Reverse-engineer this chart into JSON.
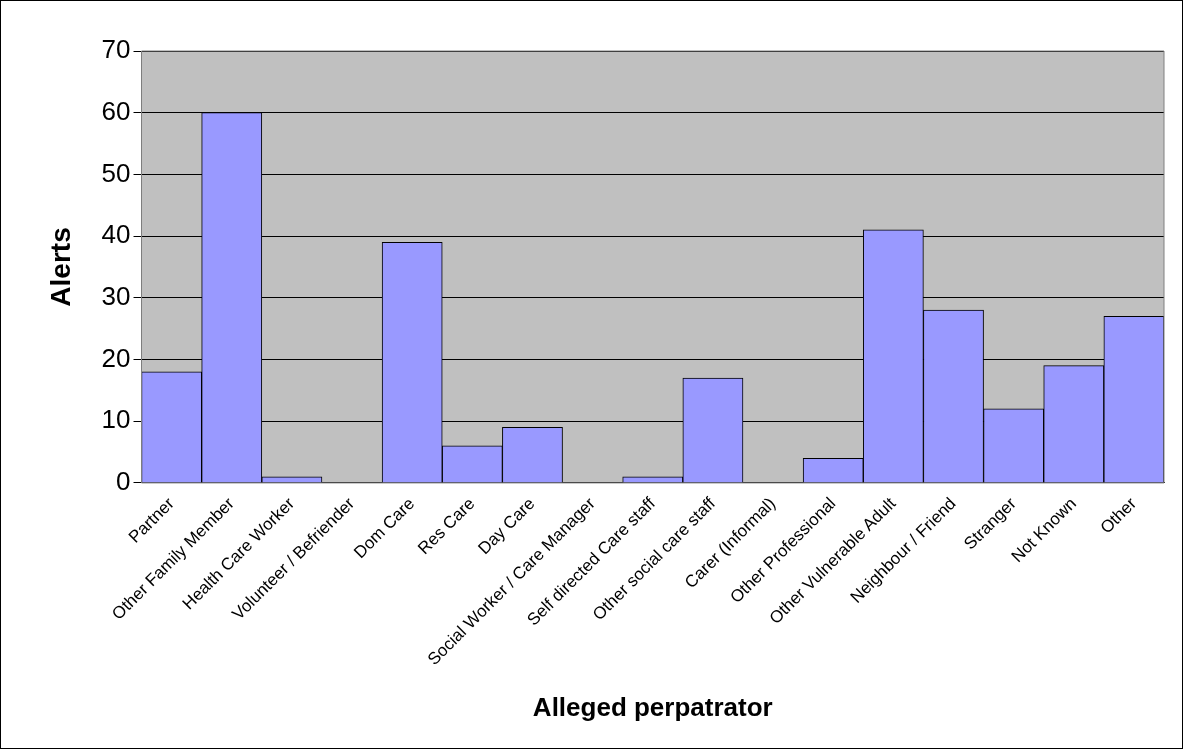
{
  "chart_data": {
    "type": "bar",
    "xlabel": "Alleged perpatrator",
    "ylabel": "Alerts",
    "categories": [
      "Partner",
      "Other Family Member",
      "Health Care Worker",
      "Volunteer / Befriender",
      "Dom Care",
      "Res Care",
      "Day Care",
      "Social Worker / Care Manager",
      "Self directed Care staff",
      "Other social care staff",
      "Carer (Informal)",
      "Other Professional",
      "Other Vulnerable Adult",
      "Neighbour / Friend",
      "Stranger",
      "Not Known",
      "Other"
    ],
    "values": [
      18,
      60,
      1,
      0,
      39,
      6,
      9,
      0,
      1,
      17,
      0,
      4,
      41,
      28,
      12,
      19,
      27
    ],
    "color": "#9999ff",
    "ylim": [
      0,
      70
    ],
    "yticks": [
      0,
      10,
      20,
      30,
      40,
      50,
      60,
      70
    ],
    "grid": "y",
    "legend": false
  }
}
